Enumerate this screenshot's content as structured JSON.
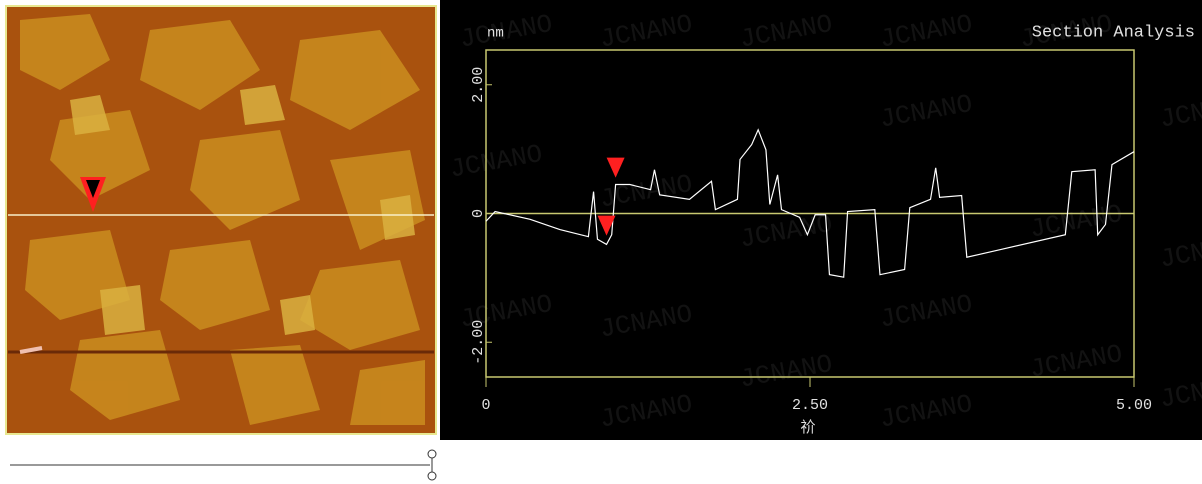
{
  "chart_data": {
    "type": "line",
    "title": "Section Analysis",
    "y_label": "nm",
    "x_label": "祄",
    "watermark": "JCNANO",
    "color": "#ffffff",
    "axis_color": "#c8c870",
    "zero_line": true,
    "x": [
      0,
      0.07,
      0.34,
      0.57,
      0.79,
      0.83,
      0.86,
      0.93,
      0.97,
      1.0,
      1.11,
      1.27,
      1.3,
      1.34,
      1.57,
      1.74,
      1.77,
      1.94,
      1.96,
      2.05,
      2.1,
      2.16,
      2.19,
      2.25,
      2.28,
      2.42,
      2.48,
      2.54,
      2.62,
      2.65,
      2.76,
      2.79,
      3.0,
      3.04,
      3.23,
      3.27,
      3.43,
      3.47,
      3.5,
      3.67,
      3.71,
      3.97,
      4.47,
      4.52,
      4.7,
      4.72,
      4.78,
      4.83,
      5.0
    ],
    "values": [
      -0.12,
      0.03,
      -0.09,
      -0.25,
      -0.36,
      0.34,
      -0.4,
      -0.48,
      -0.33,
      0.45,
      0.45,
      0.37,
      0.68,
      0.29,
      0.22,
      0.5,
      0.06,
      0.22,
      0.84,
      1.07,
      1.3,
      0.99,
      0.14,
      0.6,
      0.06,
      -0.06,
      -0.33,
      -0.02,
      -0.02,
      -0.95,
      -0.99,
      0.03,
      0.06,
      -0.95,
      -0.87,
      0.09,
      0.22,
      0.71,
      0.25,
      0.28,
      -0.68,
      -0.56,
      -0.33,
      0.65,
      0.68,
      -0.33,
      -0.17,
      0.76,
      0.96
    ],
    "cursors": [
      {
        "x": 0.93,
        "y": -0.25,
        "color": "#ff2020"
      },
      {
        "x": 1.0,
        "y": 0.65,
        "color": "#ff2020"
      }
    ],
    "xlim": [
      0,
      5
    ],
    "ylim": [
      -2.54,
      2.54
    ],
    "xticks": [
      0,
      {
        "value": 2.5,
        "label": "2.50"
      },
      {
        "value": 5,
        "label": "5.00"
      }
    ],
    "yticks": [
      {
        "value": 2,
        "label": "2.00"
      },
      0,
      {
        "value": -2,
        "label": "-2.00"
      }
    ]
  }
}
